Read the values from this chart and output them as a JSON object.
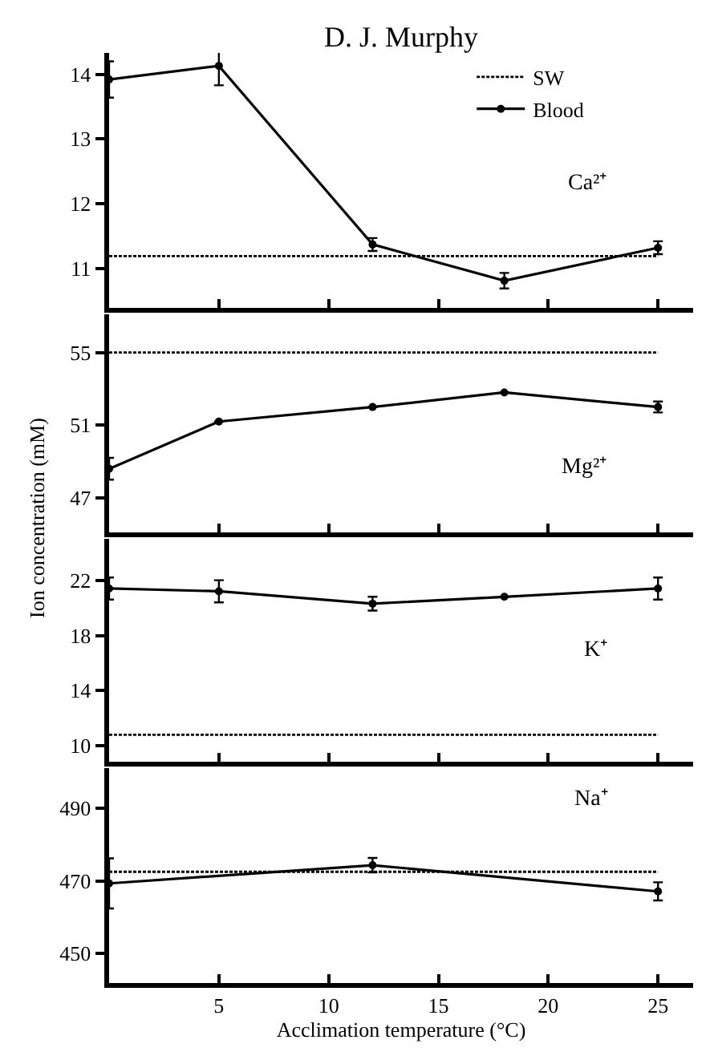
{
  "chart_data": [
    {
      "type": "line",
      "title": "D. J. Murphy",
      "ylabel": "Ion concentration (mM)",
      "x": [
        0,
        5,
        12,
        18,
        25
      ],
      "xlim": [
        0,
        26.6
      ],
      "xticks": [
        5,
        10,
        15,
        20,
        25
      ],
      "ylim": [
        10.39,
        14.33
      ],
      "yticks": [
        11,
        12,
        13,
        14
      ],
      "tick_labels": "y",
      "legend": "top right",
      "annotations": [
        "Ca²⁺"
      ],
      "series": [
        {
          "name": "SW",
          "color": "#000000",
          "line_style": "dotted",
          "marker": "none",
          "values": [
            11.19,
            11.19,
            11.19,
            11.19,
            11.19
          ]
        },
        {
          "name": "Blood",
          "color": "#000000",
          "line_style": "solid",
          "marker": "circle",
          "values": [
            13.92,
            14.13,
            11.37,
            10.81,
            11.32
          ],
          "errors": [
            0.28,
            0.3,
            0.1,
            0.12,
            0.1
          ]
        }
      ]
    },
    {
      "type": "line",
      "x": [
        0,
        5,
        12,
        18,
        25
      ],
      "xlim": [
        0,
        26.6
      ],
      "xticks": [
        5,
        10,
        15,
        20,
        25
      ],
      "ylim": [
        45.1,
        57.1
      ],
      "yticks": [
        47,
        51,
        55
      ],
      "tick_labels": "y",
      "annotations": [
        "Mg²⁺"
      ],
      "series": [
        {
          "color": "#000000",
          "line_style": "dotted",
          "marker": "none",
          "values": [
            55,
            55,
            55,
            55,
            55
          ]
        },
        {
          "color": "#000000",
          "line_style": "solid",
          "marker": "circle",
          "values": [
            48.6,
            51.2,
            52.0,
            52.8,
            52.0
          ],
          "errors": [
            0.6,
            null,
            null,
            null,
            0.3
          ]
        }
      ]
    },
    {
      "type": "line",
      "x": [
        0,
        5,
        12,
        18,
        25
      ],
      "xlim": [
        0,
        26.6
      ],
      "xticks": [
        5,
        10,
        15,
        20,
        25
      ],
      "ylim": [
        8.85,
        25
      ],
      "yticks": [
        10,
        14,
        18,
        22
      ],
      "tick_labels": "y",
      "annotations": [
        "K⁺"
      ],
      "series": [
        {
          "color": "#000000",
          "line_style": "dotted",
          "marker": "none",
          "values": [
            10.8,
            10.8,
            10.8,
            10.8,
            10.8
          ]
        },
        {
          "color": "#000000",
          "line_style": "solid",
          "marker": "circle",
          "values": [
            21.4,
            21.2,
            20.3,
            20.8,
            21.4
          ],
          "errors": [
            0.8,
            0.8,
            0.5,
            null,
            0.8
          ]
        }
      ]
    },
    {
      "type": "line",
      "xlabel": "Acclimation temperature (°C)",
      "x": [
        0,
        5,
        12,
        18,
        25
      ],
      "xlim": [
        0,
        26.6
      ],
      "xticks": [
        5,
        10,
        15,
        20,
        25
      ],
      "ylim": [
        441.9,
        501
      ],
      "yticks": [
        450,
        470,
        490
      ],
      "annotations": [
        "Na⁺"
      ],
      "series": [
        {
          "color": "#000000",
          "line_style": "dotted",
          "marker": "none",
          "values": [
            472.5,
            472.5,
            472.5,
            472.5,
            472.5
          ]
        },
        {
          "color": "#000000",
          "line_style": "solid",
          "marker": "circle",
          "values": [
            469.3,
            null,
            474.3,
            null,
            467.1
          ],
          "errors": [
            6.9,
            null,
            2,
            null,
            2.5
          ]
        }
      ]
    }
  ]
}
